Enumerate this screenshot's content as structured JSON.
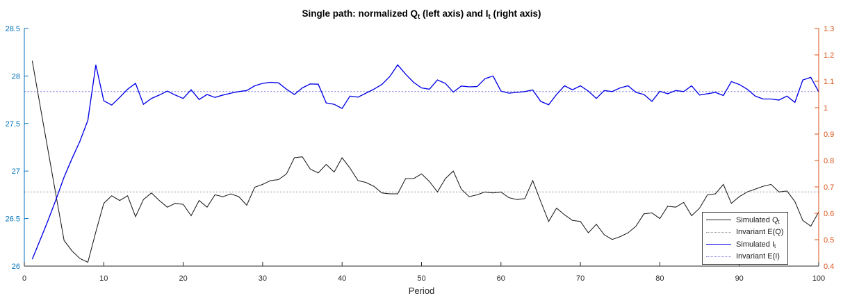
{
  "figure": {
    "title_parts": [
      {
        "text": "Single path: normalized Q"
      },
      {
        "text": "t",
        "sub": true
      },
      {
        "text": " (left axis) and I"
      },
      {
        "text": "t",
        "sub": true
      },
      {
        "text": " (right axis)"
      }
    ],
    "xlabel": "Period",
    "left_axis": {
      "color": "#0072BD",
      "tick_labels": [
        "26",
        "26.5",
        "27",
        "27.5",
        "28",
        "28.5"
      ]
    },
    "right_axis": {
      "color": "#D95319",
      "tick_labels": [
        "0.4",
        "0.5",
        "0.6",
        "0.7",
        "0.8",
        "0.9",
        "1",
        "1.1",
        "1.2",
        "1.3"
      ]
    },
    "x_axis": {
      "color": "#262626",
      "tick_labels": [
        "0",
        "10",
        "20",
        "30",
        "40",
        "50",
        "60",
        "70",
        "80",
        "90",
        "100"
      ]
    }
  },
  "legend": {
    "entries": [
      {
        "series": "simulated-q",
        "label_parts": [
          {
            "text": "Simulated Q"
          },
          {
            "text": "t",
            "sub": true
          }
        ]
      },
      {
        "series": "invariant-eq",
        "label_parts": [
          {
            "text": "Invariant E(Q)"
          }
        ]
      },
      {
        "series": "simulated-i",
        "label_parts": [
          {
            "text": "Simulated I"
          },
          {
            "text": "t",
            "sub": true
          }
        ]
      },
      {
        "series": "invariant-ei",
        "label_parts": [
          {
            "text": "Invariant E(I)"
          }
        ]
      }
    ]
  },
  "chart_data": {
    "type": "line",
    "title": "Single path: normalized Q_t (left axis) and I_t (right axis)",
    "xlabel": "Period",
    "xlim": [
      0,
      100
    ],
    "left_ylim": [
      26,
      28.5
    ],
    "right_ylim": [
      0.4,
      1.3
    ],
    "grid": false,
    "legend_position": "inside-bottom-right",
    "x_start": 1,
    "x_step": 1,
    "series": [
      {
        "id": "simulated-q",
        "name": "Simulated Q_t",
        "axis": "left",
        "color": "#1a1a1a",
        "line_style": "solid",
        "values": [
          28.16,
          27.68,
          27.21,
          26.74,
          26.27,
          26.16,
          26.08,
          26.04,
          26.36,
          26.66,
          26.74,
          26.69,
          26.74,
          26.52,
          26.7,
          26.77,
          26.69,
          26.62,
          26.66,
          26.65,
          26.53,
          26.69,
          26.62,
          26.75,
          26.73,
          26.76,
          26.73,
          26.64,
          26.83,
          26.86,
          26.9,
          26.91,
          26.97,
          27.14,
          27.15,
          27.02,
          26.98,
          27.07,
          26.99,
          27.14,
          27.03,
          26.9,
          26.88,
          26.84,
          26.77,
          26.76,
          26.76,
          26.92,
          26.92,
          26.97,
          26.89,
          26.78,
          26.92,
          27.0,
          26.81,
          26.73,
          26.75,
          26.78,
          26.77,
          26.78,
          26.72,
          26.7,
          26.71,
          26.9,
          26.68,
          26.47,
          26.61,
          26.54,
          26.48,
          26.47,
          26.35,
          26.44,
          26.33,
          26.28,
          26.31,
          26.35,
          26.42,
          26.55,
          26.56,
          26.5,
          26.63,
          26.62,
          26.67,
          26.53,
          26.61,
          26.75,
          26.76,
          26.86,
          26.66,
          26.73,
          26.78,
          26.81,
          26.84,
          26.86,
          26.78,
          26.79,
          26.68,
          26.48,
          26.42,
          26.57
        ]
      },
      {
        "id": "invariant-eq",
        "name": "Invariant E(Q)",
        "axis": "left",
        "color": "#999999",
        "line_style": "dotted",
        "value": 26.78
      },
      {
        "id": "simulated-i",
        "name": "Simulated I_t",
        "axis": "right",
        "color": "#0000e6",
        "line_style": "solid",
        "values": [
          0.426,
          0.5,
          0.574,
          0.653,
          0.737,
          0.807,
          0.873,
          0.952,
          1.162,
          1.026,
          1.01,
          1.039,
          1.07,
          1.092,
          1.013,
          1.035,
          1.048,
          1.063,
          1.048,
          1.035,
          1.068,
          1.031,
          1.05,
          1.039,
          1.048,
          1.055,
          1.061,
          1.065,
          1.083,
          1.092,
          1.096,
          1.094,
          1.07,
          1.05,
          1.075,
          1.09,
          1.089,
          1.018,
          1.013,
          0.997,
          1.044,
          1.04,
          1.055,
          1.07,
          1.088,
          1.118,
          1.162,
          1.127,
          1.096,
          1.075,
          1.07,
          1.105,
          1.092,
          1.059,
          1.082,
          1.079,
          1.08,
          1.11,
          1.12,
          1.063,
          1.055,
          1.058,
          1.061,
          1.067,
          1.024,
          1.011,
          1.05,
          1.083,
          1.068,
          1.083,
          1.063,
          1.035,
          1.065,
          1.061,
          1.075,
          1.083,
          1.058,
          1.05,
          1.024,
          1.062,
          1.053,
          1.065,
          1.061,
          1.083,
          1.048,
          1.053,
          1.058,
          1.046,
          1.099,
          1.088,
          1.07,
          1.044,
          1.033,
          1.033,
          1.029,
          1.044,
          1.02,
          1.105,
          1.115,
          1.06
        ]
      },
      {
        "id": "invariant-ei",
        "name": "Invariant E(I)",
        "axis": "right",
        "color": "#7878dc",
        "line_style": "dotted",
        "value": 1.061
      }
    ]
  }
}
